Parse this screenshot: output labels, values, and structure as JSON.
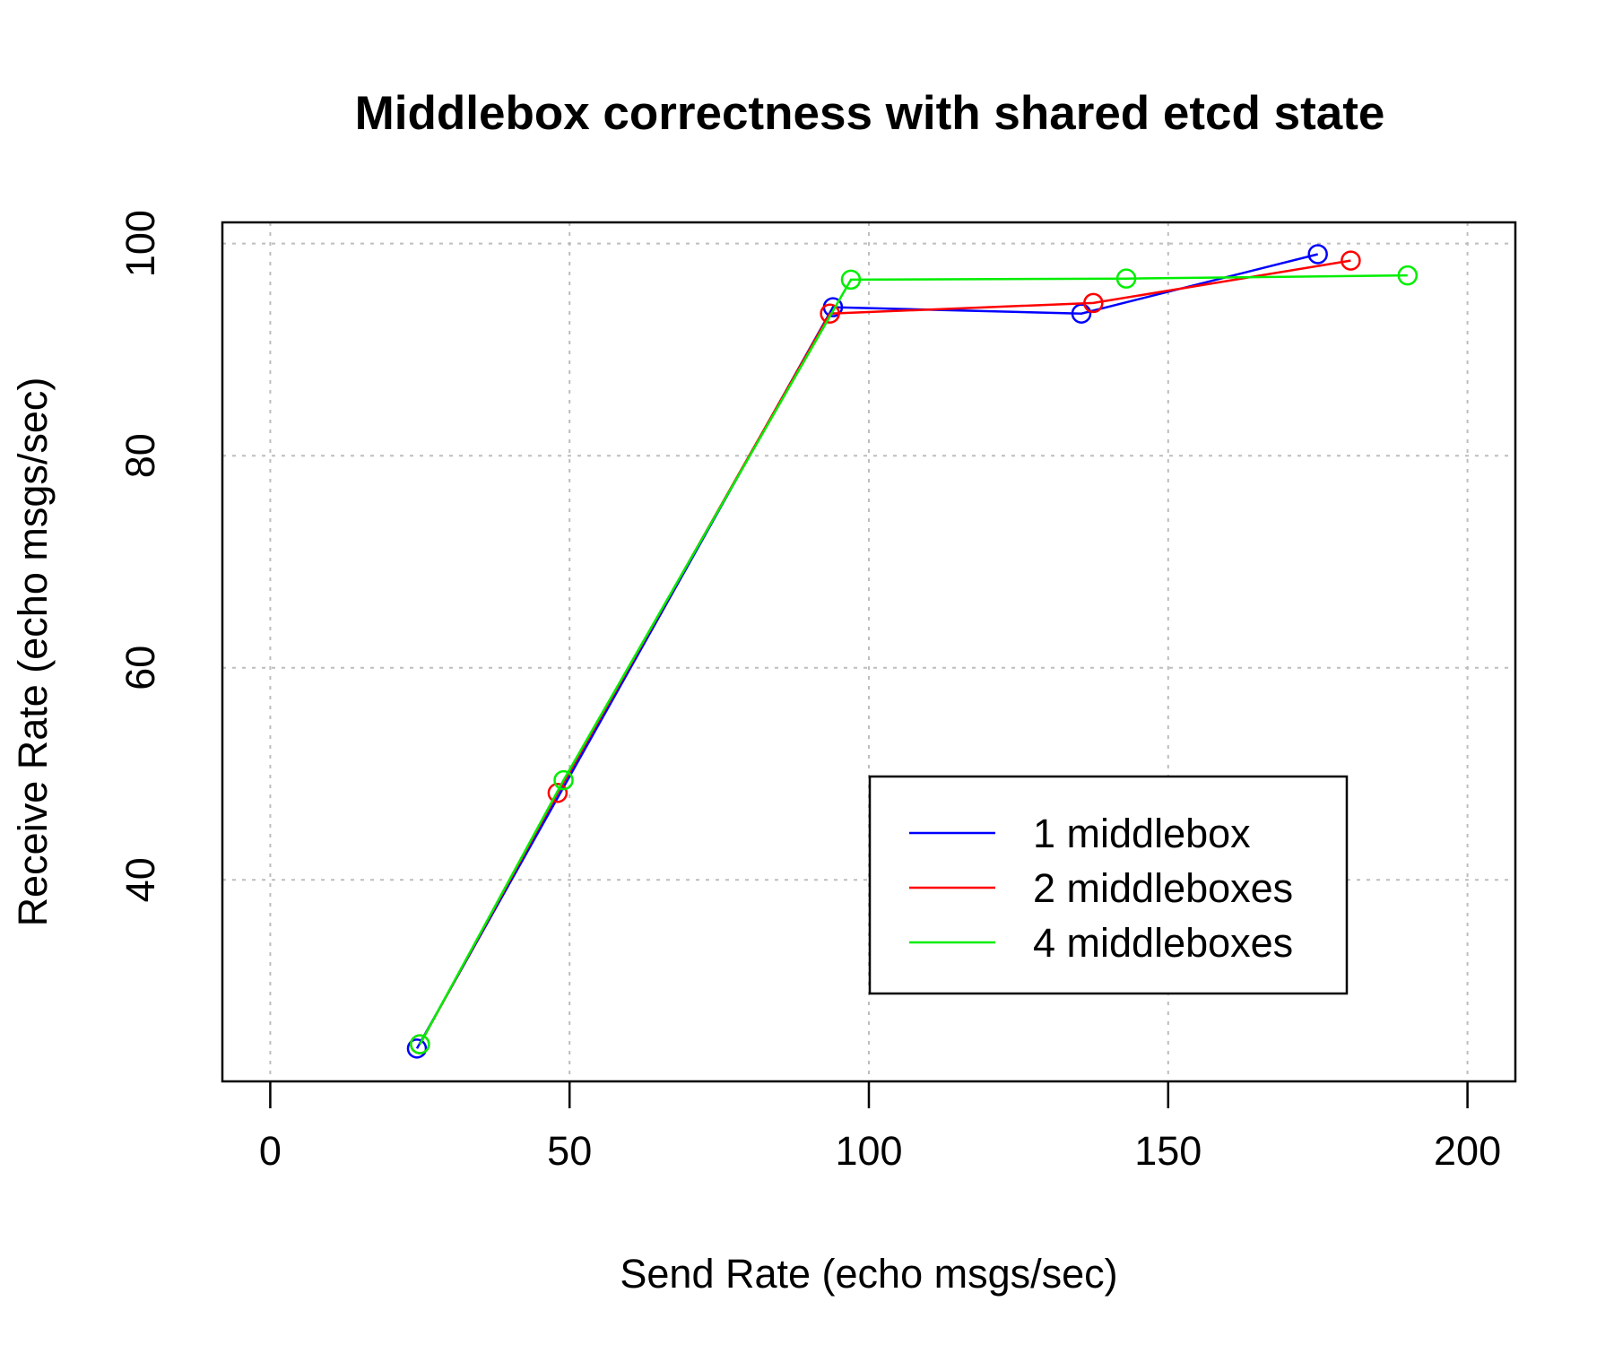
{
  "chart_data": {
    "type": "line",
    "title": "Middlebox correctness with shared etcd state",
    "xlabel": "Send Rate (echo msgs/sec)",
    "ylabel": "Receive Rate (echo msgs/sec)",
    "xlim": [
      -8,
      208
    ],
    "ylim": [
      21,
      102
    ],
    "xticks": [
      0,
      50,
      100,
      150,
      200
    ],
    "yticks": [
      40,
      60,
      80,
      100
    ],
    "xtick_labels": [
      "0",
      "50",
      "100",
      "150",
      "200"
    ],
    "ytick_labels": [
      "40",
      "60",
      "80",
      "100"
    ],
    "grid": true,
    "legend_position": "bottom-right",
    "marker": "open-circle",
    "series": [
      {
        "name": "1 middlebox",
        "color": "#0000ff",
        "x": [
          24.5,
          94,
          135.5,
          175
        ],
        "y": [
          24.1,
          94.0,
          93.4,
          99.0
        ]
      },
      {
        "name": "2 middleboxes",
        "color": "#ff0000",
        "x": [
          25,
          48,
          93.5,
          137.5,
          180.5
        ],
        "y": [
          24.5,
          48.2,
          93.4,
          94.4,
          98.4
        ]
      },
      {
        "name": "4 middleboxes",
        "color": "#00ee00",
        "x": [
          25,
          49,
          97,
          143,
          190
        ],
        "y": [
          24.5,
          49.4,
          96.6,
          96.7,
          97.0
        ]
      }
    ]
  }
}
